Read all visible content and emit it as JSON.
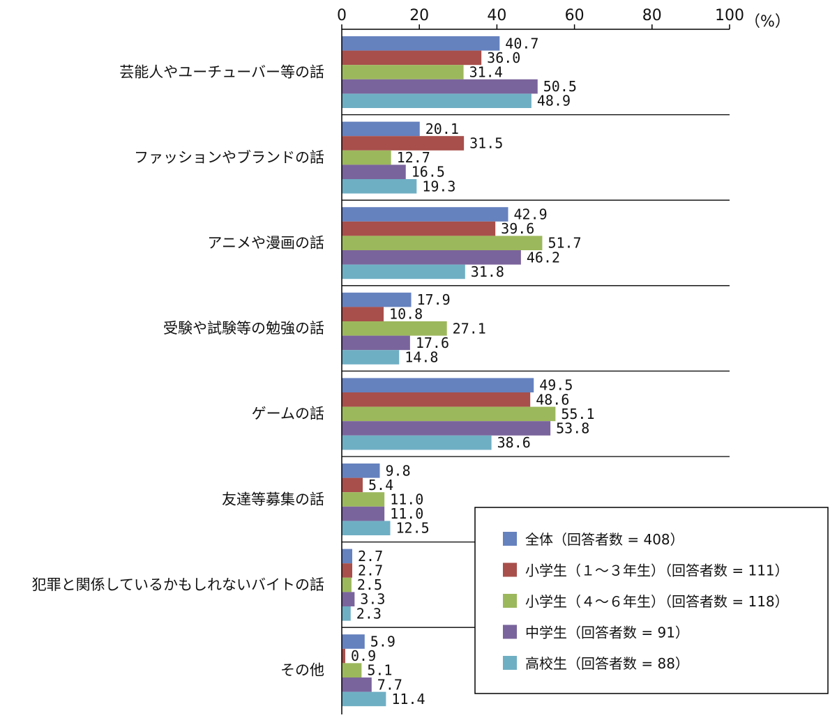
{
  "chart_data": {
    "type": "bar",
    "orientation": "horizontal",
    "categories": [
      "芸能人やユーチューバー等の話",
      "ファッションやブランドの話",
      "アニメや漫画の話",
      "受験や試験等の勉強の話",
      "ゲームの話",
      "友達等募集の話",
      "犯罪と関係しているかもしれないバイトの話",
      "その他"
    ],
    "series": [
      {
        "name": "全体（回答者数 = 408）",
        "color": "#6581be",
        "values": [
          40.7,
          20.1,
          42.9,
          17.9,
          49.5,
          9.8,
          2.7,
          5.9
        ]
      },
      {
        "name": "小学生（１～３年生）（回答者数 = 111）",
        "color": "#a84f4b",
        "values": [
          36.0,
          31.5,
          39.6,
          10.8,
          48.6,
          5.4,
          2.7,
          0.9
        ]
      },
      {
        "name": "小学生（４～６年生）（回答者数 = 118）",
        "color": "#9cb85c",
        "values": [
          31.4,
          12.7,
          51.7,
          27.1,
          55.1,
          11.0,
          2.5,
          5.1
        ]
      },
      {
        "name": "中学生（回答者数 = 91）",
        "color": "#7a649c",
        "values": [
          50.5,
          16.5,
          46.2,
          17.6,
          53.8,
          11.0,
          3.3,
          7.7
        ]
      },
      {
        "name": "高校生（回答者数 = 88）",
        "color": "#6fafc4",
        "values": [
          48.9,
          19.3,
          31.8,
          14.8,
          38.6,
          12.5,
          2.3,
          11.4
        ]
      }
    ],
    "value_labels": [
      [
        "40.7",
        "20.1",
        "42.9",
        "17.9",
        "49.5",
        "9.8",
        "2.7",
        "5.9"
      ],
      [
        "36.0",
        "31.5",
        "39.6",
        "10.8",
        "48.6",
        "5.4",
        "2.7",
        "0.9"
      ],
      [
        "31.4",
        "12.7",
        "51.7",
        "27.1",
        "55.1",
        "11.0",
        "2.5",
        "5.1"
      ],
      [
        "50.5",
        "16.5",
        "46.2",
        "17.6",
        "53.8",
        "11.0",
        "3.3",
        "7.7"
      ],
      [
        "48.9",
        "19.3",
        "31.8",
        "14.8",
        "38.6",
        "12.5",
        "2.3",
        "11.4"
      ]
    ],
    "xlim": [
      0,
      100
    ],
    "xticks": [
      "0",
      "20",
      "40",
      "60",
      "80",
      "100"
    ],
    "unit_label": "（%）",
    "legend_position": "bottom-right"
  }
}
